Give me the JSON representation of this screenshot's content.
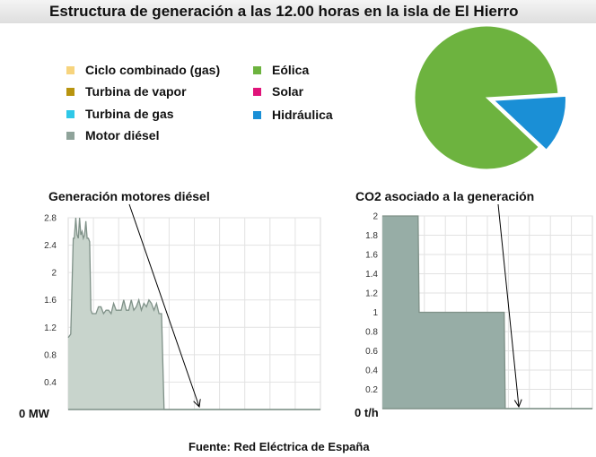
{
  "header": {
    "title": "Estructura de generación a las 12.00 horas en la isla de El Hierro"
  },
  "legend": [
    {
      "label": "Ciclo combinado (gas)",
      "color": "#f7d47e"
    },
    {
      "label": "Turbina de vapor",
      "color": "#b8940f"
    },
    {
      "label": "Turbina de gas",
      "color": "#2fc8e8"
    },
    {
      "label": "Motor diésel",
      "color": "#8fa39a"
    },
    {
      "label": "Eólica",
      "color": "#6db33f"
    },
    {
      "label": "Solar",
      "color": "#e0147a"
    },
    {
      "label": "Hidráulica",
      "color": "#1a8fd6"
    }
  ],
  "source": "Fuente: Red Eléctrica de España",
  "chart_data": [
    {
      "type": "pie",
      "categories": [
        "Eólica",
        "Hidráulica"
      ],
      "values": [
        87,
        13
      ],
      "colors": [
        "#6db33f",
        "#1a8fd6"
      ],
      "exploded": "Hidráulica"
    },
    {
      "type": "area",
      "title": "Generación motores diésel",
      "zero_label": "0 MW",
      "ylim": [
        0,
        2.8
      ],
      "xlim": [
        0,
        100
      ],
      "yticks": [
        "2.8",
        "2.4",
        "2",
        "1.6",
        "1.2",
        "0.8",
        "0.4"
      ],
      "ytick_values": [
        2.8,
        2.4,
        2,
        1.6,
        1.2,
        0.8,
        0.4
      ],
      "grid": true,
      "color": "#c8d4cc",
      "line_color": "#7f9188",
      "x": [
        0,
        1,
        2,
        2.4,
        3,
        3.5,
        4,
        4.5,
        5,
        5.5,
        6,
        6.5,
        7,
        7.5,
        8,
        8.5,
        9,
        9.5,
        10,
        10.5,
        11,
        12,
        13,
        14,
        15,
        16,
        17,
        18,
        19,
        20,
        21,
        22,
        23,
        24,
        25,
        26,
        27,
        28,
        29,
        30,
        31,
        32,
        33,
        34,
        35,
        36,
        37,
        38,
        39,
        40,
        41,
        42,
        43,
        44,
        45,
        46,
        47,
        48,
        100
      ],
      "y": [
        1.05,
        1.1,
        2.5,
        2.5,
        2.8,
        2.55,
        2.5,
        2.8,
        2.55,
        2.6,
        2.5,
        2.55,
        2.75,
        2.5,
        2.5,
        2.45,
        1.45,
        1.4,
        1.4,
        1.4,
        1.4,
        1.5,
        1.5,
        1.4,
        1.45,
        1.45,
        1.4,
        1.55,
        1.45,
        1.45,
        1.45,
        1.6,
        1.45,
        1.45,
        1.6,
        1.45,
        1.5,
        1.6,
        1.45,
        1.55,
        1.5,
        1.6,
        1.55,
        1.45,
        1.55,
        1.4,
        1.4,
        0,
        0,
        0,
        0,
        0,
        0,
        0,
        0,
        0,
        0,
        0,
        0
      ]
    },
    {
      "type": "area",
      "title": "CO2 asociado a la generación",
      "zero_label": "0 t/h",
      "ylim": [
        0,
        2
      ],
      "xlim": [
        0,
        100
      ],
      "yticks": [
        "2",
        "1.8",
        "1.6",
        "1.4",
        "1.2",
        "1",
        "0.8",
        "0.6",
        "0.4",
        "0.2"
      ],
      "ytick_values": [
        2,
        1.8,
        1.6,
        1.4,
        1.2,
        1,
        0.8,
        0.6,
        0.4,
        0.2
      ],
      "grid": true,
      "color": "#97ada6",
      "line_color": "#7f9188",
      "x": [
        0,
        6,
        6.5,
        17,
        17.5,
        58,
        58.5,
        100
      ],
      "y": [
        2,
        2,
        2,
        2,
        1,
        1,
        0,
        0
      ]
    }
  ]
}
